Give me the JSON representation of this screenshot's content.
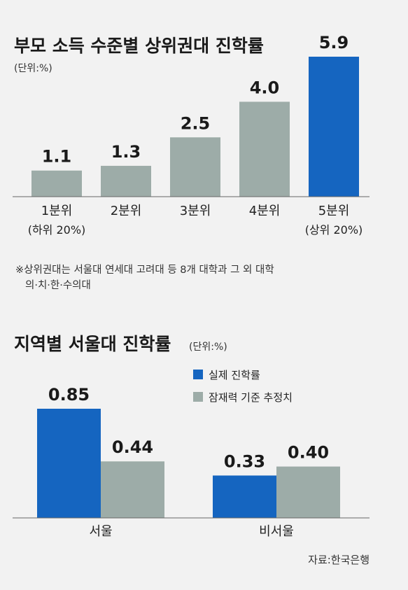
{
  "chart_data": [
    {
      "type": "bar",
      "title": "부모 소득 수준별 상위권대 진학률",
      "unit": "(단위:%)",
      "categories": [
        "1분위",
        "2분위",
        "3분위",
        "4분위",
        "5분위"
      ],
      "subcategories": [
        "(하위 20%)",
        "",
        "",
        "",
        "(상위 20%)"
      ],
      "values": [
        1.1,
        1.3,
        2.5,
        4.0,
        5.9
      ],
      "value_labels": [
        "1.1",
        "1.3",
        "2.5",
        "4.0",
        "5.9"
      ],
      "highlight_index": 4,
      "ylim": [
        0,
        5.9
      ],
      "grid": false,
      "note_lines": [
        "※상위권대는 서울대 연세대 고려대 등 8개 대학과 그 외 대학",
        "의·치·한·수의대"
      ]
    },
    {
      "type": "bar",
      "title": "지역별 서울대 진학률",
      "unit": "(단위:%)",
      "categories": [
        "서울",
        "비서울"
      ],
      "series": [
        {
          "name": "실제 진학률",
          "values": [
            0.85,
            0.33
          ],
          "value_labels": [
            "0.85",
            "0.33"
          ]
        },
        {
          "name": "잠재력 기준 추정치",
          "values": [
            0.44,
            0.4
          ],
          "value_labels": [
            "0.44",
            "0.40"
          ]
        }
      ],
      "legend_position": "top-right",
      "ylim": [
        0,
        0.85
      ],
      "grid": false
    }
  ],
  "colors": {
    "highlight": "#1565c0",
    "gray": "#9daca8",
    "baseline": "#666666",
    "background": "#f2f2f2"
  },
  "source": "자료:한국은행"
}
